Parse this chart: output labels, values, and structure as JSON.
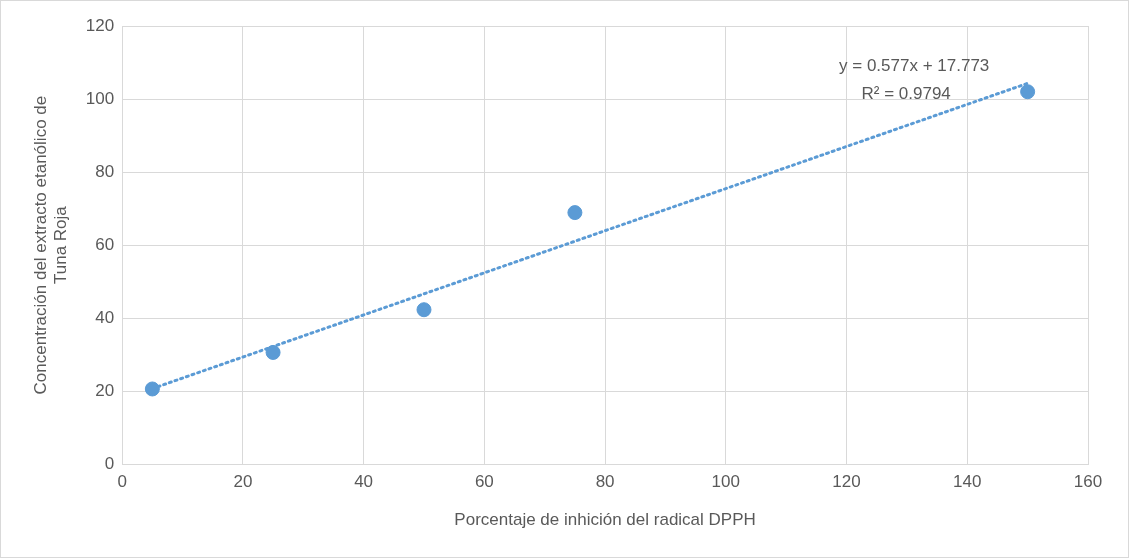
{
  "chart_data": {
    "type": "scatter",
    "xlabel": "Porcentaje de inhición del radical DPPH",
    "ylabel": "Concentración del extracto etanólico de Tuna Roja",
    "xlim": [
      0,
      160
    ],
    "xticks": [
      0,
      20,
      40,
      60,
      80,
      100,
      120,
      140,
      160
    ],
    "ylim": [
      0,
      120
    ],
    "yticks": [
      0,
      20,
      40,
      60,
      80,
      100,
      120
    ],
    "grid": true,
    "legend": false,
    "series": [
      {
        "type": "scatter",
        "x": [
          5,
          25,
          50,
          75,
          150
        ],
        "values": [
          20.6,
          30.6,
          42.3,
          68.9,
          102
        ],
        "color": "#5b9bd5",
        "marker": "circle"
      },
      {
        "type": "line",
        "x": [
          5,
          150
        ],
        "values": [
          20.7,
          104.3
        ],
        "color": "#5b9bd5",
        "line_style": "dotted",
        "marker": "none"
      }
    ],
    "annotations": [
      "y = 0.577x + 17.773",
      "R² = 0.9794"
    ]
  }
}
